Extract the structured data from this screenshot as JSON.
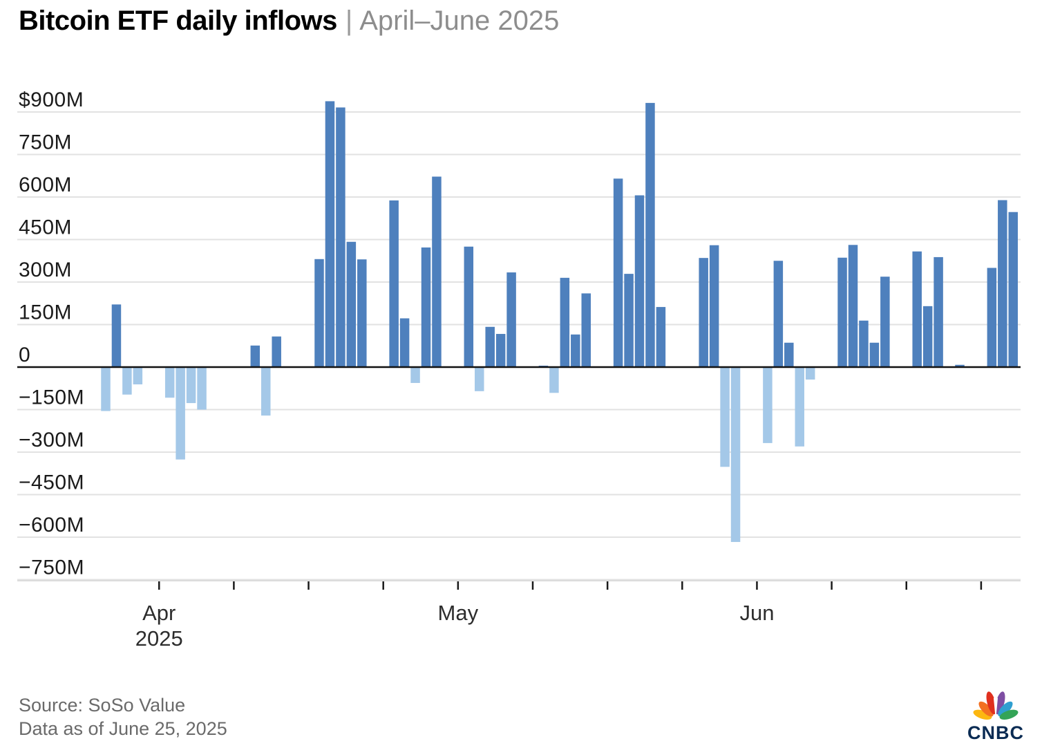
{
  "header": {
    "title": "Bitcoin ETF daily inflows",
    "separator": "|",
    "subtitle": "April–June 2025"
  },
  "footer": {
    "source_line1": "Source: SoSo Value",
    "source_line2": "Data as of June 25, 2025",
    "logo_text": "CNBC"
  },
  "chart_data": {
    "type": "bar",
    "title": "Bitcoin ETF daily inflows",
    "subtitle": "April–June 2025",
    "unit": "millions of USD per trading day",
    "ylim": [
      -750,
      900
    ],
    "y_tick_step": 150,
    "grid": true,
    "legend": false,
    "y_ticks": [
      {
        "value": 900,
        "label": "$900M"
      },
      {
        "value": 750,
        "label": "750M"
      },
      {
        "value": 600,
        "label": "600M"
      },
      {
        "value": 450,
        "label": "450M"
      },
      {
        "value": 300,
        "label": "300M"
      },
      {
        "value": 150,
        "label": "150M"
      },
      {
        "value": 0,
        "label": "0"
      },
      {
        "value": -150,
        "label": "−150M"
      },
      {
        "value": -300,
        "label": "−300M"
      },
      {
        "value": -450,
        "label": "−450M"
      },
      {
        "value": -600,
        "label": "−600M"
      },
      {
        "value": -750,
        "label": "−750M"
      }
    ],
    "x_axis": {
      "type": "time",
      "range": [
        "Apr 1 2025",
        "Jun 25 2025"
      ],
      "ticks": "weekly (Sundays)",
      "month_labels": [
        {
          "label": "Apr",
          "year": "2025",
          "anchor": "Apr 6"
        },
        {
          "label": "May",
          "year": "",
          "anchor": "May 4"
        },
        {
          "label": "Jun",
          "year": "",
          "anchor": "Jun 1"
        }
      ]
    },
    "colors": {
      "positive": "#4e80bd",
      "negative": "#a4c8e8"
    },
    "points": [
      {
        "date": "Apr 1",
        "value": -155
      },
      {
        "date": "Apr 2",
        "value": 221
      },
      {
        "date": "Apr 3",
        "value": -97
      },
      {
        "date": "Apr 4",
        "value": -61
      },
      {
        "date": "Apr 7",
        "value": -108
      },
      {
        "date": "Apr 8",
        "value": -326
      },
      {
        "date": "Apr 9",
        "value": -127
      },
      {
        "date": "Apr 10",
        "value": -150
      },
      {
        "date": "Apr 15",
        "value": 76
      },
      {
        "date": "Apr 16",
        "value": -171
      },
      {
        "date": "Apr 17",
        "value": 108
      },
      {
        "date": "Apr 21",
        "value": 381
      },
      {
        "date": "Apr 22",
        "value": 938
      },
      {
        "date": "Apr 23",
        "value": 916
      },
      {
        "date": "Apr 24",
        "value": 442
      },
      {
        "date": "Apr 25",
        "value": 380
      },
      {
        "date": "Apr 28",
        "value": 588
      },
      {
        "date": "Apr 29",
        "value": 172
      },
      {
        "date": "Apr 30",
        "value": -56
      },
      {
        "date": "May 1",
        "value": 422
      },
      {
        "date": "May 2",
        "value": 672
      },
      {
        "date": "May 5",
        "value": 425
      },
      {
        "date": "May 6",
        "value": -85
      },
      {
        "date": "May 7",
        "value": 142
      },
      {
        "date": "May 8",
        "value": 117
      },
      {
        "date": "May 9",
        "value": 334
      },
      {
        "date": "May 12",
        "value": 5
      },
      {
        "date": "May 13",
        "value": -91
      },
      {
        "date": "May 14",
        "value": 315
      },
      {
        "date": "May 15",
        "value": 115
      },
      {
        "date": "May 16",
        "value": 260
      },
      {
        "date": "May 19",
        "value": 665
      },
      {
        "date": "May 20",
        "value": 329
      },
      {
        "date": "May 21",
        "value": 606
      },
      {
        "date": "May 22",
        "value": 932
      },
      {
        "date": "May 23",
        "value": 212
      },
      {
        "date": "May 27",
        "value": 385
      },
      {
        "date": "May 28",
        "value": 430
      },
      {
        "date": "May 29",
        "value": -352
      },
      {
        "date": "May 30",
        "value": -617
      },
      {
        "date": "Jun 2",
        "value": -268
      },
      {
        "date": "Jun 3",
        "value": 375
      },
      {
        "date": "Jun 4",
        "value": 86
      },
      {
        "date": "Jun 5",
        "value": -280
      },
      {
        "date": "Jun 6",
        "value": -44
      },
      {
        "date": "Jun 9",
        "value": 386
      },
      {
        "date": "Jun 10",
        "value": 431
      },
      {
        "date": "Jun 11",
        "value": 164
      },
      {
        "date": "Jun 12",
        "value": 86
      },
      {
        "date": "Jun 13",
        "value": 319
      },
      {
        "date": "Jun 16",
        "value": 408
      },
      {
        "date": "Jun 17",
        "value": 215
      },
      {
        "date": "Jun 18",
        "value": 388
      },
      {
        "date": "Jun 20",
        "value": 8
      },
      {
        "date": "Jun 23",
        "value": 350
      },
      {
        "date": "Jun 24",
        "value": 589
      },
      {
        "date": "Jun 25",
        "value": 547
      }
    ],
    "logo_colors": [
      "#fcb711",
      "#f37021",
      "#e0301e",
      "#7e4ea3",
      "#2f9fd0",
      "#33a457"
    ]
  }
}
